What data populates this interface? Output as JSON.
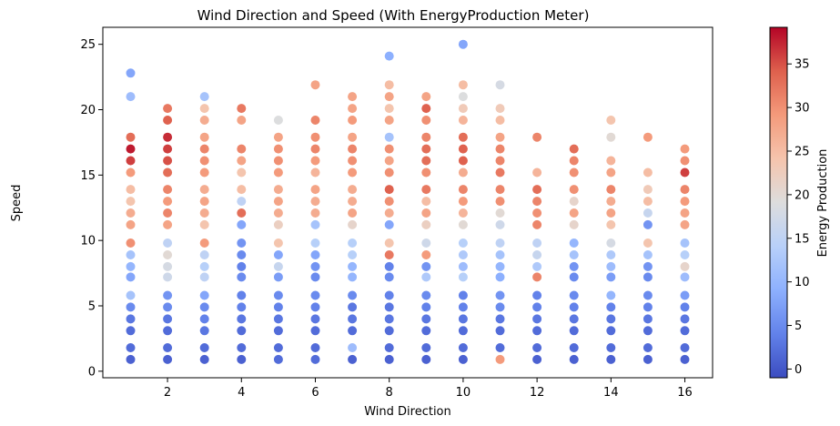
{
  "chart_data": {
    "type": "scatter",
    "title": "Wind Direction and Speed (With EnergyProduction Meter)",
    "xlabel": "Wind Direction",
    "ylabel": "Speed",
    "xlim": [
      0.25,
      16.75
    ],
    "ylim": [
      -0.5,
      26.3
    ],
    "xticks": [
      2,
      4,
      6,
      8,
      10,
      12,
      14,
      16
    ],
    "yticks": [
      0,
      5,
      10,
      15,
      20,
      25
    ],
    "grid": false,
    "colormap": "coolwarm",
    "colorbar": {
      "label": "Energy Production",
      "range": [
        -1,
        39.2
      ],
      "ticks": [
        0,
        5,
        10,
        15,
        20,
        25,
        30,
        35
      ]
    },
    "columns": [
      "wind_direction",
      "speed",
      "energy_production"
    ],
    "points": [
      [
        1,
        22.8,
        8
      ],
      [
        1,
        21.0,
        11
      ],
      [
        1,
        17.9,
        33
      ],
      [
        1,
        17.0,
        38
      ],
      [
        1,
        16.1,
        36
      ],
      [
        1,
        15.2,
        29
      ],
      [
        1,
        13.9,
        25
      ],
      [
        1,
        13.0,
        24
      ],
      [
        1,
        12.1,
        27
      ],
      [
        1,
        11.2,
        28
      ],
      [
        1,
        9.8,
        30
      ],
      [
        1,
        8.9,
        12
      ],
      [
        1,
        8.0,
        10
      ],
      [
        1,
        7.2,
        8
      ],
      [
        1,
        5.8,
        12
      ],
      [
        1,
        4.9,
        5
      ],
      [
        1,
        4.0,
        3
      ],
      [
        1,
        3.1,
        2
      ],
      [
        1,
        1.8,
        2
      ],
      [
        1,
        0.9,
        1
      ],
      [
        2,
        20.1,
        32
      ],
      [
        2,
        19.2,
        34
      ],
      [
        2,
        17.9,
        37
      ],
      [
        2,
        17.0,
        36
      ],
      [
        2,
        16.1,
        35
      ],
      [
        2,
        15.2,
        33
      ],
      [
        2,
        13.9,
        31
      ],
      [
        2,
        13.0,
        29
      ],
      [
        2,
        12.1,
        31
      ],
      [
        2,
        11.2,
        28
      ],
      [
        2,
        9.8,
        15
      ],
      [
        2,
        8.9,
        20
      ],
      [
        2,
        8.0,
        18
      ],
      [
        2,
        7.2,
        17
      ],
      [
        2,
        5.8,
        6
      ],
      [
        2,
        4.9,
        5
      ],
      [
        2,
        4.0,
        3
      ],
      [
        2,
        3.1,
        2
      ],
      [
        2,
        1.8,
        2
      ],
      [
        2,
        0.9,
        1
      ],
      [
        3,
        21.0,
        12
      ],
      [
        3,
        20.1,
        24
      ],
      [
        3,
        19.2,
        27
      ],
      [
        3,
        17.9,
        28
      ],
      [
        3,
        17.0,
        31
      ],
      [
        3,
        16.1,
        30
      ],
      [
        3,
        15.2,
        29
      ],
      [
        3,
        13.9,
        27
      ],
      [
        3,
        13.0,
        28
      ],
      [
        3,
        12.1,
        27
      ],
      [
        3,
        11.2,
        24
      ],
      [
        3,
        9.8,
        29
      ],
      [
        3,
        8.9,
        15
      ],
      [
        3,
        8.0,
        14
      ],
      [
        3,
        7.2,
        15
      ],
      [
        3,
        5.8,
        8
      ],
      [
        3,
        4.9,
        5
      ],
      [
        3,
        4.0,
        4
      ],
      [
        3,
        3.1,
        3
      ],
      [
        3,
        1.8,
        2
      ],
      [
        3,
        0.9,
        1
      ],
      [
        4,
        20.1,
        32
      ],
      [
        4,
        19.2,
        28
      ],
      [
        4,
        17.0,
        31
      ],
      [
        4,
        16.1,
        28
      ],
      [
        4,
        15.2,
        24
      ],
      [
        4,
        13.9,
        25
      ],
      [
        4,
        13.0,
        15
      ],
      [
        4,
        12.1,
        33
      ],
      [
        4,
        11.2,
        8
      ],
      [
        4,
        9.8,
        6
      ],
      [
        4,
        8.9,
        5
      ],
      [
        4,
        8.0,
        4
      ],
      [
        4,
        7.2,
        5
      ],
      [
        4,
        5.8,
        4
      ],
      [
        4,
        4.9,
        4
      ],
      [
        4,
        4.0,
        3
      ],
      [
        4,
        3.1,
        2
      ],
      [
        4,
        1.8,
        2
      ],
      [
        4,
        0.9,
        1
      ],
      [
        5,
        19.2,
        19
      ],
      [
        5,
        17.9,
        28
      ],
      [
        5,
        17.0,
        30
      ],
      [
        5,
        16.1,
        30
      ],
      [
        5,
        15.2,
        29
      ],
      [
        5,
        13.9,
        27
      ],
      [
        5,
        13.0,
        28
      ],
      [
        5,
        12.1,
        27
      ],
      [
        5,
        11.2,
        22
      ],
      [
        5,
        9.8,
        24
      ],
      [
        5,
        8.9,
        8
      ],
      [
        5,
        8.0,
        16
      ],
      [
        5,
        7.2,
        7
      ],
      [
        5,
        5.8,
        5
      ],
      [
        5,
        4.9,
        4
      ],
      [
        5,
        4.0,
        3
      ],
      [
        5,
        3.1,
        2
      ],
      [
        5,
        1.8,
        2
      ],
      [
        5,
        0.9,
        2
      ],
      [
        6,
        21.9,
        28
      ],
      [
        6,
        19.2,
        31
      ],
      [
        6,
        17.9,
        30
      ],
      [
        6,
        17.0,
        31
      ],
      [
        6,
        16.1,
        29
      ],
      [
        6,
        15.2,
        26
      ],
      [
        6,
        13.9,
        28
      ],
      [
        6,
        13.0,
        27
      ],
      [
        6,
        12.1,
        27
      ],
      [
        6,
        11.2,
        12
      ],
      [
        6,
        9.8,
        14
      ],
      [
        6,
        8.9,
        8
      ],
      [
        6,
        8.0,
        6
      ],
      [
        6,
        7.2,
        5
      ],
      [
        6,
        5.8,
        5
      ],
      [
        6,
        4.9,
        4
      ],
      [
        6,
        4.0,
        3
      ],
      [
        6,
        3.1,
        2
      ],
      [
        6,
        1.8,
        2
      ],
      [
        6,
        0.9,
        2
      ],
      [
        7,
        21.0,
        28
      ],
      [
        7,
        20.1,
        28
      ],
      [
        7,
        19.2,
        29
      ],
      [
        7,
        17.9,
        28
      ],
      [
        7,
        17.0,
        31
      ],
      [
        7,
        16.1,
        30
      ],
      [
        7,
        15.2,
        29
      ],
      [
        7,
        13.9,
        27
      ],
      [
        7,
        13.0,
        27
      ],
      [
        7,
        12.1,
        28
      ],
      [
        7,
        11.2,
        21
      ],
      [
        7,
        9.8,
        14
      ],
      [
        7,
        8.9,
        14
      ],
      [
        7,
        8.0,
        10
      ],
      [
        7,
        7.2,
        10
      ],
      [
        7,
        5.8,
        5
      ],
      [
        7,
        4.9,
        3
      ],
      [
        7,
        4.0,
        3
      ],
      [
        7,
        3.1,
        2
      ],
      [
        7,
        1.8,
        11
      ],
      [
        7,
        0.9,
        1
      ],
      [
        8,
        24.1,
        9
      ],
      [
        8,
        21.9,
        25
      ],
      [
        8,
        21.0,
        28
      ],
      [
        8,
        20.1,
        24
      ],
      [
        8,
        19.2,
        28
      ],
      [
        8,
        17.9,
        12
      ],
      [
        8,
        17.0,
        30
      ],
      [
        8,
        16.1,
        28
      ],
      [
        8,
        15.2,
        30
      ],
      [
        8,
        13.9,
        34
      ],
      [
        8,
        13.0,
        30
      ],
      [
        8,
        12.1,
        27
      ],
      [
        8,
        11.2,
        8
      ],
      [
        8,
        9.8,
        24
      ],
      [
        8,
        8.9,
        32
      ],
      [
        8,
        8.0,
        4
      ],
      [
        8,
        7.2,
        5
      ],
      [
        8,
        5.8,
        4
      ],
      [
        8,
        4.9,
        3
      ],
      [
        8,
        4.0,
        3
      ],
      [
        8,
        3.1,
        2
      ],
      [
        8,
        1.8,
        2
      ],
      [
        8,
        0.9,
        1
      ],
      [
        9,
        21.0,
        28
      ],
      [
        9,
        20.1,
        34
      ],
      [
        9,
        19.2,
        30
      ],
      [
        9,
        17.9,
        31
      ],
      [
        9,
        17.0,
        33
      ],
      [
        9,
        16.1,
        33
      ],
      [
        9,
        15.2,
        30
      ],
      [
        9,
        13.9,
        32
      ],
      [
        9,
        13.0,
        25
      ],
      [
        9,
        12.1,
        28
      ],
      [
        9,
        11.2,
        22
      ],
      [
        9,
        9.8,
        17
      ],
      [
        9,
        8.9,
        29
      ],
      [
        9,
        8.0,
        6
      ],
      [
        9,
        7.2,
        13
      ],
      [
        9,
        5.8,
        5
      ],
      [
        9,
        4.9,
        4
      ],
      [
        9,
        4.0,
        3
      ],
      [
        9,
        3.1,
        2
      ],
      [
        9,
        1.8,
        2
      ],
      [
        9,
        0.9,
        1
      ],
      [
        10,
        25.0,
        8
      ],
      [
        10,
        21.9,
        25
      ],
      [
        10,
        21.0,
        19
      ],
      [
        10,
        20.1,
        23
      ],
      [
        10,
        19.2,
        26
      ],
      [
        10,
        17.9,
        33
      ],
      [
        10,
        17.0,
        34
      ],
      [
        10,
        16.1,
        34
      ],
      [
        10,
        15.2,
        27
      ],
      [
        10,
        13.9,
        31
      ],
      [
        10,
        13.0,
        29
      ],
      [
        10,
        12.1,
        26
      ],
      [
        10,
        11.2,
        20
      ],
      [
        10,
        9.8,
        14
      ],
      [
        10,
        8.9,
        13
      ],
      [
        10,
        8.0,
        11
      ],
      [
        10,
        7.2,
        14
      ],
      [
        10,
        5.8,
        4
      ],
      [
        10,
        4.9,
        4
      ],
      [
        10,
        4.0,
        3
      ],
      [
        10,
        3.1,
        2
      ],
      [
        10,
        1.8,
        2
      ],
      [
        10,
        0.9,
        1
      ],
      [
        11,
        21.9,
        18
      ],
      [
        11,
        20.1,
        23
      ],
      [
        11,
        19.2,
        25
      ],
      [
        11,
        17.9,
        28
      ],
      [
        11,
        17.0,
        31
      ],
      [
        11,
        16.1,
        31
      ],
      [
        11,
        15.2,
        32
      ],
      [
        11,
        13.9,
        31
      ],
      [
        11,
        13.0,
        30
      ],
      [
        11,
        12.1,
        20
      ],
      [
        11,
        11.2,
        17
      ],
      [
        11,
        9.8,
        15
      ],
      [
        11,
        8.9,
        12
      ],
      [
        11,
        8.0,
        10
      ],
      [
        11,
        7.2,
        9
      ],
      [
        11,
        5.8,
        6
      ],
      [
        11,
        4.9,
        5
      ],
      [
        11,
        4.0,
        3
      ],
      [
        11,
        3.1,
        2
      ],
      [
        11,
        1.8,
        2
      ],
      [
        11,
        0.9,
        29
      ],
      [
        12,
        17.9,
        31
      ],
      [
        12,
        15.2,
        26
      ],
      [
        12,
        13.9,
        33
      ],
      [
        12,
        13.0,
        31
      ],
      [
        12,
        12.1,
        30
      ],
      [
        12,
        11.2,
        31
      ],
      [
        12,
        9.8,
        15
      ],
      [
        12,
        8.9,
        16
      ],
      [
        12,
        8.0,
        13
      ],
      [
        12,
        7.2,
        31
      ],
      [
        12,
        5.8,
        4
      ],
      [
        12,
        4.9,
        4
      ],
      [
        12,
        4.0,
        3
      ],
      [
        12,
        3.1,
        2
      ],
      [
        12,
        1.8,
        2
      ],
      [
        12,
        0.9,
        1
      ],
      [
        13,
        17.0,
        33
      ],
      [
        13,
        16.1,
        31
      ],
      [
        13,
        15.2,
        30
      ],
      [
        13,
        13.9,
        30
      ],
      [
        13,
        13.0,
        21
      ],
      [
        13,
        12.1,
        28
      ],
      [
        13,
        11.2,
        21
      ],
      [
        13,
        9.8,
        10
      ],
      [
        13,
        8.9,
        12
      ],
      [
        13,
        8.0,
        6
      ],
      [
        13,
        7.2,
        5
      ],
      [
        13,
        5.8,
        5
      ],
      [
        13,
        4.9,
        4
      ],
      [
        13,
        4.0,
        3
      ],
      [
        13,
        3.1,
        2
      ],
      [
        13,
        1.8,
        2
      ],
      [
        13,
        0.9,
        1
      ],
      [
        14,
        19.2,
        24
      ],
      [
        14,
        17.9,
        20
      ],
      [
        14,
        16.1,
        26
      ],
      [
        14,
        15.2,
        28
      ],
      [
        14,
        13.9,
        31
      ],
      [
        14,
        13.0,
        27
      ],
      [
        14,
        12.1,
        28
      ],
      [
        14,
        11.2,
        24
      ],
      [
        14,
        9.8,
        18
      ],
      [
        14,
        8.9,
        13
      ],
      [
        14,
        8.0,
        11
      ],
      [
        14,
        7.2,
        7
      ],
      [
        14,
        5.8,
        10
      ],
      [
        14,
        4.9,
        4
      ],
      [
        14,
        4.0,
        3
      ],
      [
        14,
        3.1,
        2
      ],
      [
        14,
        1.8,
        2
      ],
      [
        14,
        0.9,
        1
      ],
      [
        15,
        17.9,
        29
      ],
      [
        15,
        15.2,
        25
      ],
      [
        15,
        13.9,
        23
      ],
      [
        15,
        13.0,
        25
      ],
      [
        15,
        12.1,
        16
      ],
      [
        15,
        11.2,
        6
      ],
      [
        15,
        9.8,
        24
      ],
      [
        15,
        8.9,
        12
      ],
      [
        15,
        8.0,
        6
      ],
      [
        15,
        7.2,
        5
      ],
      [
        15,
        5.8,
        5
      ],
      [
        15,
        4.9,
        4
      ],
      [
        15,
        4.0,
        3
      ],
      [
        15,
        3.1,
        2
      ],
      [
        15,
        1.8,
        2
      ],
      [
        15,
        0.9,
        1
      ],
      [
        16,
        17.0,
        29
      ],
      [
        16,
        16.1,
        30
      ],
      [
        16,
        15.2,
        36
      ],
      [
        16,
        13.9,
        31
      ],
      [
        16,
        13.0,
        29
      ],
      [
        16,
        12.1,
        28
      ],
      [
        16,
        11.2,
        28
      ],
      [
        16,
        9.8,
        12
      ],
      [
        16,
        8.9,
        14
      ],
      [
        16,
        8.0,
        21
      ],
      [
        16,
        7.2,
        11
      ],
      [
        16,
        5.8,
        7
      ],
      [
        16,
        4.9,
        4
      ],
      [
        16,
        4.0,
        3
      ],
      [
        16,
        3.1,
        2
      ],
      [
        16,
        1.8,
        2
      ],
      [
        16,
        0.9,
        1
      ]
    ]
  }
}
